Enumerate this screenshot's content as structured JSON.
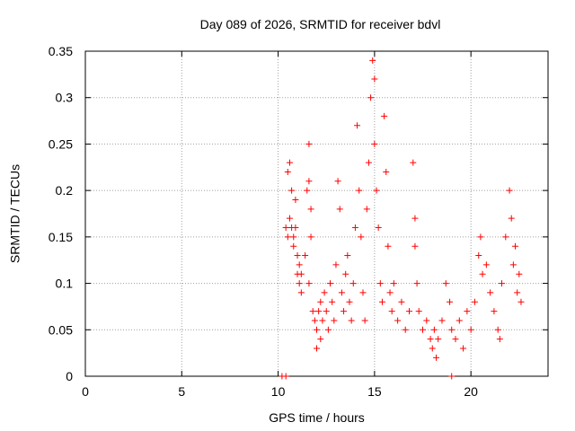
{
  "chart_data": {
    "type": "scatter",
    "title": "Day 089 of 2026, SRMTID for receiver bdvl",
    "xlabel": "GPS time / hours",
    "ylabel": "SRMTID / TECUs",
    "xlim": [
      0,
      24
    ],
    "ylim": [
      0,
      0.35
    ],
    "x_ticks": [
      0,
      5,
      10,
      15,
      20
    ],
    "x_tick_labels": [
      "0",
      "5",
      "10",
      "15",
      "20"
    ],
    "y_ticks": [
      0,
      0.05,
      0.1,
      0.15,
      0.2,
      0.25,
      0.3,
      0.35
    ],
    "y_tick_labels": [
      "0",
      "0.05",
      "0.1",
      "0.15",
      "0.2",
      "0.25",
      "0.3",
      "0.35"
    ],
    "grid": true,
    "marker": "plus",
    "marker_color": "#ff0000",
    "series": [
      {
        "name": "SRMTID",
        "points": [
          [
            10.2,
            0.0
          ],
          [
            10.4,
            0.0
          ],
          [
            19.0,
            0.0
          ],
          [
            10.4,
            0.16
          ],
          [
            10.5,
            0.15
          ],
          [
            10.5,
            0.22
          ],
          [
            10.6,
            0.23
          ],
          [
            10.6,
            0.17
          ],
          [
            10.7,
            0.16
          ],
          [
            10.7,
            0.2
          ],
          [
            10.8,
            0.15
          ],
          [
            10.8,
            0.14
          ],
          [
            10.9,
            0.16
          ],
          [
            10.9,
            0.19
          ],
          [
            11.0,
            0.13
          ],
          [
            11.0,
            0.11
          ],
          [
            11.1,
            0.1
          ],
          [
            11.1,
            0.12
          ],
          [
            11.2,
            0.09
          ],
          [
            11.2,
            0.11
          ],
          [
            11.4,
            0.13
          ],
          [
            11.5,
            0.2
          ],
          [
            11.6,
            0.21
          ],
          [
            11.6,
            0.25
          ],
          [
            11.7,
            0.18
          ],
          [
            11.7,
            0.15
          ],
          [
            11.6,
            0.1
          ],
          [
            11.8,
            0.07
          ],
          [
            11.9,
            0.06
          ],
          [
            12.0,
            0.03
          ],
          [
            12.0,
            0.05
          ],
          [
            12.1,
            0.07
          ],
          [
            12.2,
            0.08
          ],
          [
            12.2,
            0.04
          ],
          [
            12.3,
            0.06
          ],
          [
            12.4,
            0.09
          ],
          [
            12.5,
            0.07
          ],
          [
            12.6,
            0.05
          ],
          [
            12.7,
            0.1
          ],
          [
            12.8,
            0.08
          ],
          [
            12.9,
            0.06
          ],
          [
            13.0,
            0.12
          ],
          [
            13.1,
            0.21
          ],
          [
            13.2,
            0.18
          ],
          [
            13.3,
            0.09
          ],
          [
            13.4,
            0.07
          ],
          [
            13.5,
            0.11
          ],
          [
            13.6,
            0.13
          ],
          [
            13.7,
            0.08
          ],
          [
            13.8,
            0.06
          ],
          [
            13.9,
            0.1
          ],
          [
            14.0,
            0.16
          ],
          [
            14.1,
            0.27
          ],
          [
            14.2,
            0.2
          ],
          [
            14.3,
            0.15
          ],
          [
            14.4,
            0.09
          ],
          [
            14.5,
            0.06
          ],
          [
            14.6,
            0.18
          ],
          [
            14.7,
            0.23
          ],
          [
            14.8,
            0.3
          ],
          [
            14.9,
            0.34
          ],
          [
            15.0,
            0.32
          ],
          [
            15.0,
            0.25
          ],
          [
            15.1,
            0.2
          ],
          [
            15.2,
            0.16
          ],
          [
            15.3,
            0.1
          ],
          [
            15.4,
            0.08
          ],
          [
            15.5,
            0.28
          ],
          [
            15.6,
            0.22
          ],
          [
            15.7,
            0.14
          ],
          [
            15.8,
            0.09
          ],
          [
            15.9,
            0.07
          ],
          [
            16.0,
            0.1
          ],
          [
            16.2,
            0.06
          ],
          [
            16.4,
            0.08
          ],
          [
            16.6,
            0.05
          ],
          [
            16.8,
            0.07
          ],
          [
            17.0,
            0.23
          ],
          [
            17.1,
            0.17
          ],
          [
            17.1,
            0.14
          ],
          [
            17.2,
            0.1
          ],
          [
            17.3,
            0.07
          ],
          [
            17.5,
            0.05
          ],
          [
            17.7,
            0.06
          ],
          [
            17.9,
            0.04
          ],
          [
            18.0,
            0.03
          ],
          [
            18.1,
            0.05
          ],
          [
            18.2,
            0.02
          ],
          [
            18.3,
            0.04
          ],
          [
            18.5,
            0.06
          ],
          [
            18.7,
            0.1
          ],
          [
            18.9,
            0.08
          ],
          [
            19.0,
            0.05
          ],
          [
            19.2,
            0.04
          ],
          [
            19.4,
            0.06
          ],
          [
            19.6,
            0.03
          ],
          [
            19.8,
            0.07
          ],
          [
            20.0,
            0.05
          ],
          [
            20.2,
            0.08
          ],
          [
            20.4,
            0.13
          ],
          [
            20.5,
            0.15
          ],
          [
            20.6,
            0.11
          ],
          [
            20.8,
            0.12
          ],
          [
            21.0,
            0.09
          ],
          [
            21.2,
            0.07
          ],
          [
            21.4,
            0.05
          ],
          [
            21.5,
            0.04
          ],
          [
            21.6,
            0.1
          ],
          [
            21.8,
            0.15
          ],
          [
            22.0,
            0.2
          ],
          [
            22.1,
            0.17
          ],
          [
            22.2,
            0.12
          ],
          [
            22.3,
            0.14
          ],
          [
            22.4,
            0.09
          ],
          [
            22.5,
            0.11
          ],
          [
            22.6,
            0.08
          ]
        ]
      }
    ]
  }
}
